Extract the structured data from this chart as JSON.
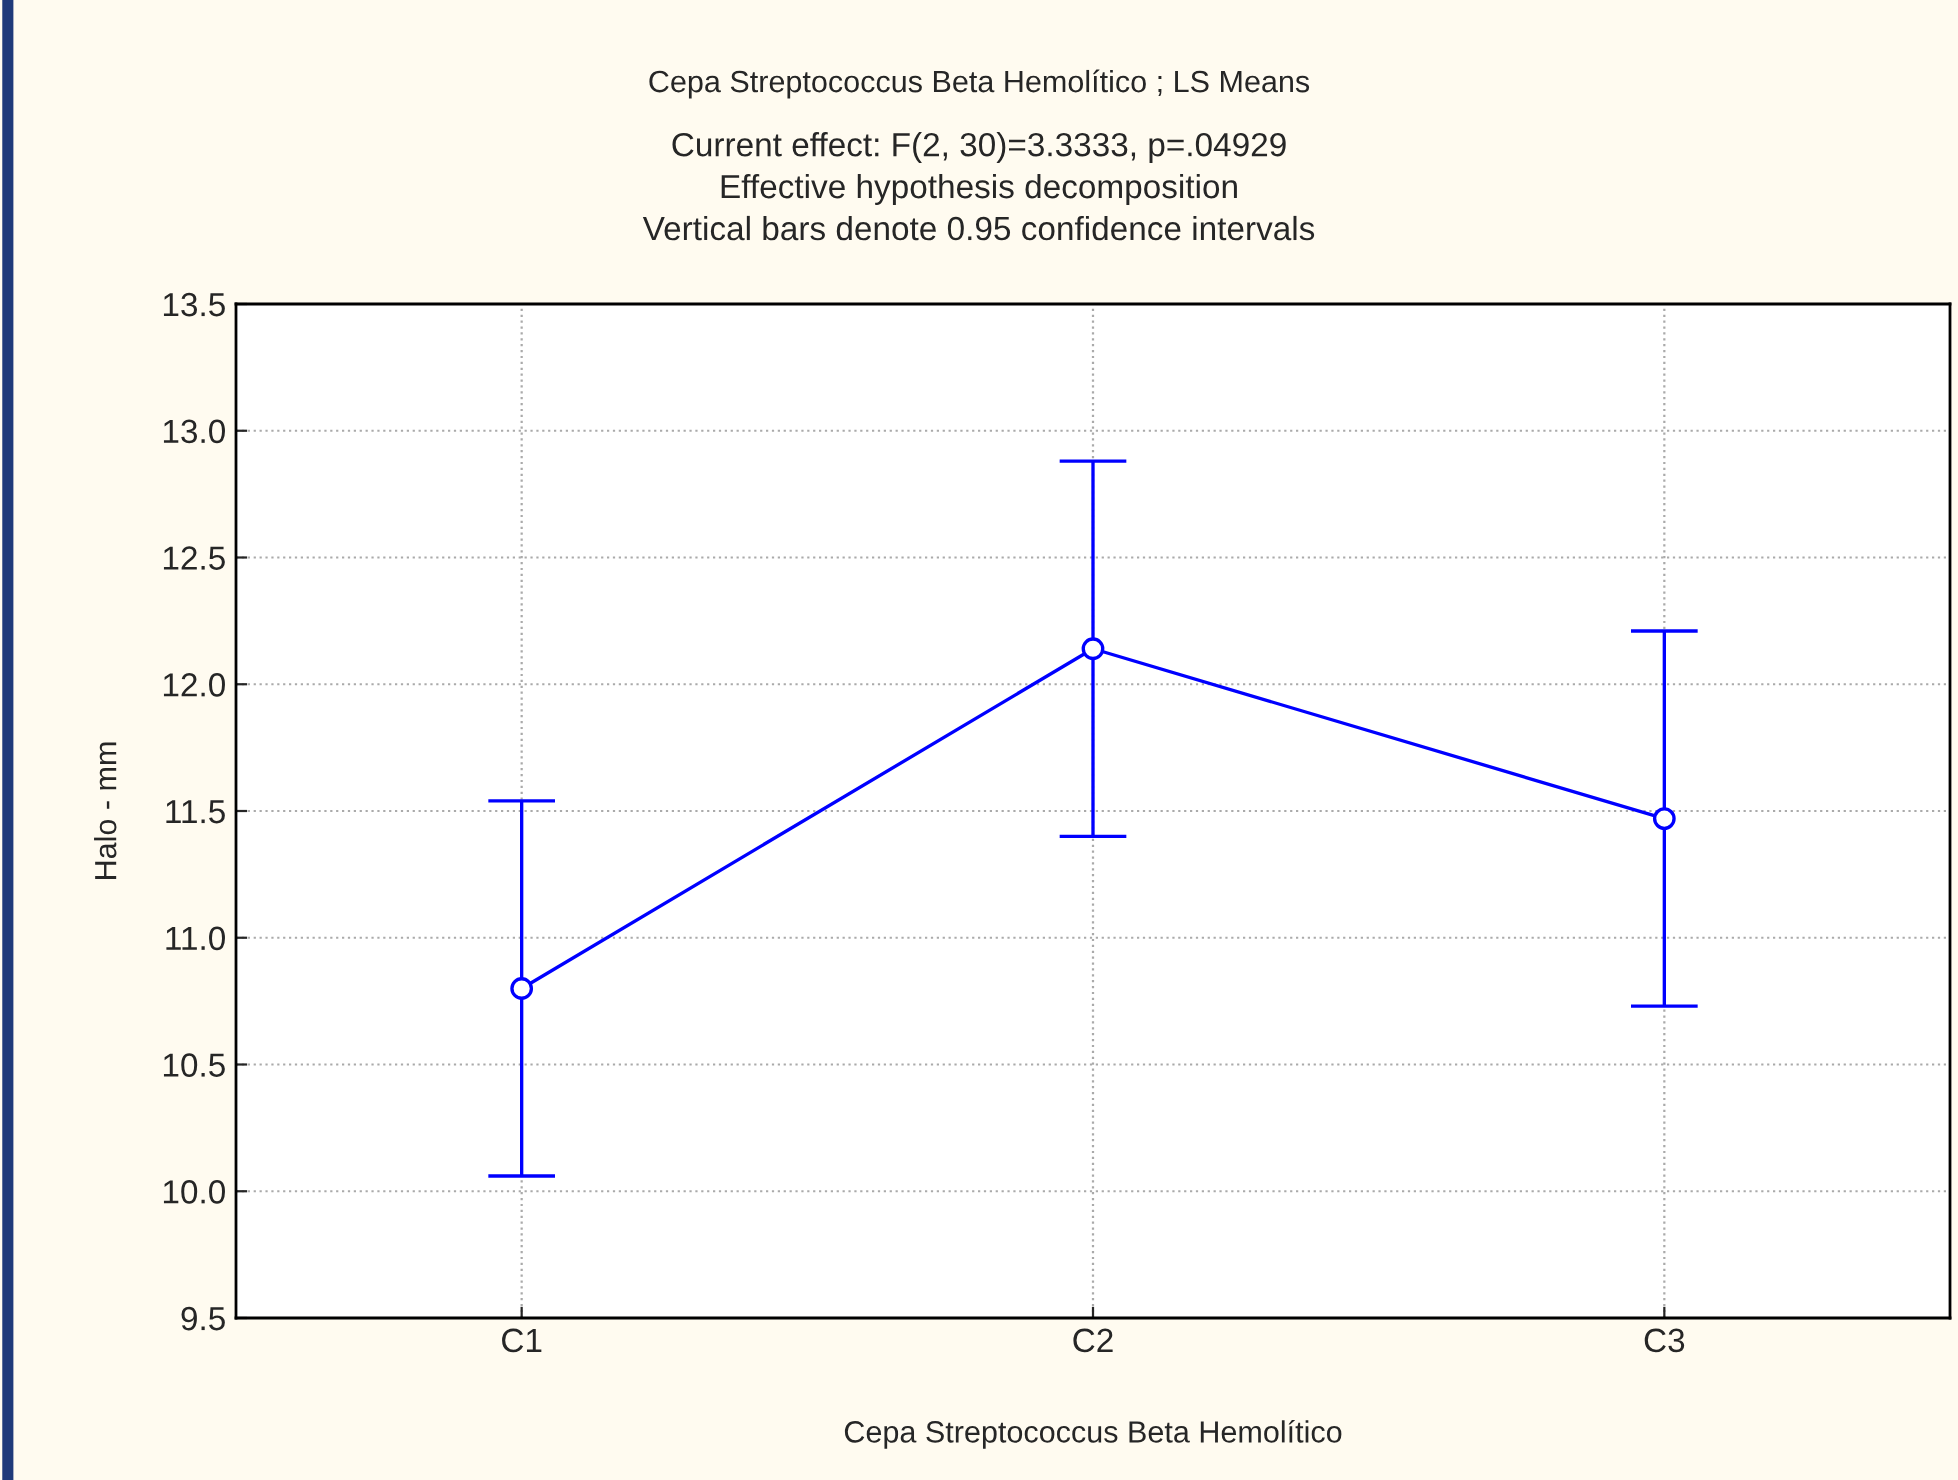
{
  "chart_data": {
    "type": "line",
    "title": "Cepa Streptococcus Beta Hemolítico ; LS Means",
    "subtitle": "Current effect: F(2, 30)=3.3333, p=.04929\nEffective hypothesis decomposition\nVertical bars denote 0.95 confidence intervals",
    "xlabel": "Cepa Streptococcus Beta Hemolítico",
    "ylabel": "Halo - mm",
    "categories": [
      "C1",
      "C2",
      "C3"
    ],
    "series": [
      {
        "color": "#0000ff",
        "values": [
          10.8,
          12.14,
          11.47
        ],
        "errors": [
          0.74,
          0.74,
          0.74
        ]
      }
    ],
    "ylim": [
      9.5,
      13.5
    ],
    "yticks": [
      {
        "value": 9.5,
        "label": "9.5"
      },
      {
        "value": 10,
        "label": "10.0"
      },
      {
        "value": 10.5,
        "label": "10.5"
      },
      {
        "value": 11,
        "label": "11.0"
      },
      {
        "value": 11.5,
        "label": "11.5"
      },
      {
        "value": 12,
        "label": "12.0"
      },
      {
        "value": 12.5,
        "label": "12.5"
      },
      {
        "value": 13,
        "label": "13.0"
      },
      {
        "value": 13.5,
        "label": "13.5"
      }
    ],
    "grid": true,
    "marker": "circle",
    "line_style": "solid",
    "legend": false
  }
}
